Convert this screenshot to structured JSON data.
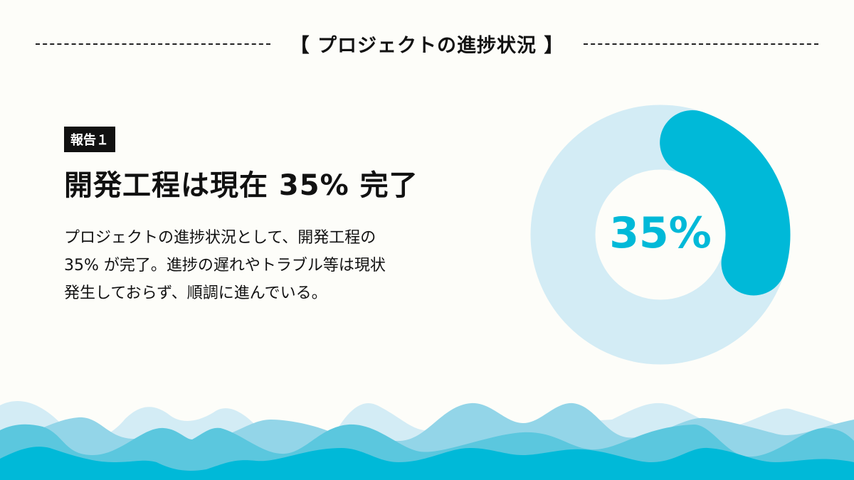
{
  "header": {
    "title": "【 プロジェクトの進捗状況 】"
  },
  "report": {
    "badge": "報告１",
    "headline": "開発工程は現在 35% 完了",
    "body_lines": [
      "プロジェクトの進捗状況として、開発工程の",
      "35% が完了。進捗の遅れやトラブル等は現状",
      "発生しておらず、順調に進んでいる。"
    ]
  },
  "chart_data": {
    "type": "pie",
    "variant": "donut",
    "values": [
      35,
      65
    ],
    "center_label": "35%",
    "colors": {
      "progress": "#00b9d8",
      "remaining": "#d3ecf5",
      "label": "#00b9d8"
    }
  },
  "colors": {
    "background": "#fdfdf9",
    "waves": [
      "#d3ecf5",
      "#93d5e8",
      "#5bc7de",
      "#00b9d8"
    ]
  }
}
